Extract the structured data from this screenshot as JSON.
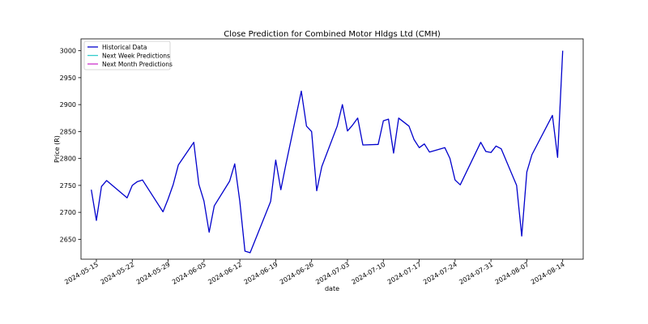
{
  "chart_data": {
    "type": "line",
    "title": "Close Prediction for Combined Motor Hldgs Ltd (CMH)",
    "xlabel": "date",
    "ylabel": "Price (R)",
    "x_ticks": [
      "2024-05-15",
      "2024-05-22",
      "2024-05-29",
      "2024-06-05",
      "2024-06-12",
      "2024-06-19",
      "2024-06-26",
      "2024-07-03",
      "2024-07-10",
      "2024-07-17",
      "2024-07-24",
      "2024-07-31",
      "2024-08-07",
      "2024-08-14"
    ],
    "y_ticks": [
      2650,
      2700,
      2750,
      2800,
      2850,
      2900,
      2950,
      3000
    ],
    "ylim": [
      2613,
      3022
    ],
    "xlim": [
      "2024-05-12",
      "2024-08-18"
    ],
    "legend_position": "top-left",
    "grid": false,
    "series": [
      {
        "name": "Historical Data",
        "color": "#0000cc",
        "x": [
          "2024-05-14",
          "2024-05-15",
          "2024-05-16",
          "2024-05-17",
          "2024-05-21",
          "2024-05-22",
          "2024-05-23",
          "2024-05-24",
          "2024-05-28",
          "2024-05-29",
          "2024-05-30",
          "2024-05-31",
          "2024-06-03",
          "2024-06-04",
          "2024-06-05",
          "2024-06-06",
          "2024-06-07",
          "2024-06-10",
          "2024-06-11",
          "2024-06-12",
          "2024-06-13",
          "2024-06-14",
          "2024-06-18",
          "2024-06-19",
          "2024-06-20",
          "2024-06-21",
          "2024-06-24",
          "2024-06-25",
          "2024-06-26",
          "2024-06-27",
          "2024-06-28",
          "2024-07-01",
          "2024-07-02",
          "2024-07-03",
          "2024-07-04",
          "2024-07-05",
          "2024-07-06",
          "2024-07-09",
          "2024-07-10",
          "2024-07-11",
          "2024-07-12",
          "2024-07-13",
          "2024-07-15",
          "2024-07-16",
          "2024-07-17",
          "2024-07-18",
          "2024-07-19",
          "2024-07-22",
          "2024-07-23",
          "2024-07-24",
          "2024-07-25",
          "2024-07-29",
          "2024-07-30",
          "2024-07-31",
          "2024-08-01",
          "2024-08-02",
          "2024-08-05",
          "2024-08-06",
          "2024-08-07",
          "2024-08-08",
          "2024-08-12",
          "2024-08-13",
          "2024-08-14"
        ],
        "y": [
          2742,
          2685,
          2748,
          2759,
          2727,
          2750,
          2757,
          2760,
          2701,
          2725,
          2752,
          2788,
          2830,
          2752,
          2721,
          2663,
          2712,
          2758,
          2790,
          2720,
          2628,
          2625,
          2720,
          2797,
          2742,
          2790,
          2925,
          2860,
          2850,
          2740,
          2785,
          2860,
          2900,
          2851,
          2862,
          2875,
          2825,
          2826,
          2870,
          2873,
          2810,
          2875,
          2860,
          2835,
          2820,
          2827,
          2812,
          2820,
          2800,
          2760,
          2751,
          2830,
          2813,
          2811,
          2823,
          2818,
          2750,
          2656,
          2775,
          2807,
          2880,
          2802,
          3000
        ]
      },
      {
        "name": "Next Week Predictions",
        "color": "#33cccc",
        "x": [],
        "y": []
      },
      {
        "name": "Next Month Predictions",
        "color": "#cc33cc",
        "x": [],
        "y": []
      }
    ]
  }
}
